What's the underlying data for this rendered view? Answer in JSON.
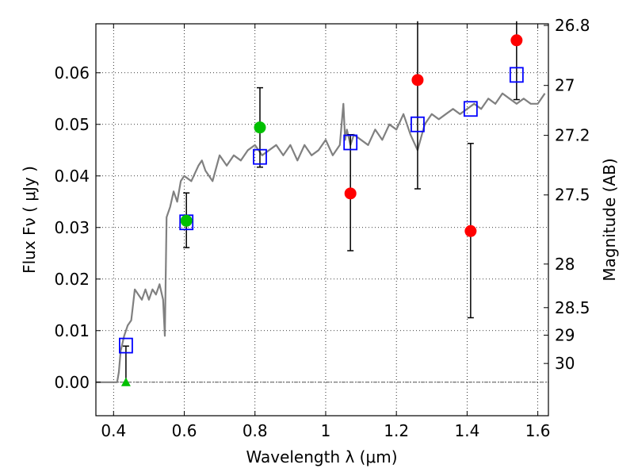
{
  "chart_data": {
    "type": "scatter",
    "xlabel": "Wavelength  λ (μm)",
    "ylabel": "Flux  Fν  ( μJy )",
    "y2label": "Magnitude (AB)",
    "xlim": [
      0.35,
      1.63
    ],
    "ylim": [
      -0.0065,
      0.0695
    ],
    "grid": true,
    "x_ticks": [
      0.4,
      0.6,
      0.8,
      1.0,
      1.2,
      1.4,
      1.6
    ],
    "x_tick_labels": [
      "0.4",
      "0.6",
      "0.8",
      "1",
      "1.2",
      "1.4",
      "1.6"
    ],
    "y_ticks": [
      0.0,
      0.01,
      0.02,
      0.03,
      0.04,
      0.05,
      0.06
    ],
    "y_tick_labels": [
      "0.00",
      "0.01",
      "0.02",
      "0.03",
      "0.04",
      "0.05",
      "0.06"
    ],
    "mag_ticks": [
      26.8,
      27,
      27.2,
      27.5,
      28,
      28.5,
      29,
      30
    ],
    "mag_tick_labels": [
      "26.8",
      "27",
      "27.2",
      "27.5",
      "28",
      "28.5",
      "29",
      "30"
    ],
    "colors": {
      "model": "#808080",
      "model_flux": "#0000ff",
      "green": "#00c000",
      "red": "#ff0000",
      "errorbar": "#000000",
      "zero_line": "#555555"
    },
    "model_spectrum": {
      "x": [
        0.35,
        0.38,
        0.4,
        0.41,
        0.415,
        0.42,
        0.43,
        0.44,
        0.45,
        0.46,
        0.47,
        0.48,
        0.49,
        0.5,
        0.51,
        0.52,
        0.53,
        0.54,
        0.545,
        0.55,
        0.56,
        0.57,
        0.58,
        0.59,
        0.6,
        0.62,
        0.64,
        0.65,
        0.66,
        0.68,
        0.7,
        0.72,
        0.74,
        0.76,
        0.78,
        0.8,
        0.82,
        0.84,
        0.86,
        0.88,
        0.9,
        0.92,
        0.94,
        0.96,
        0.98,
        1.0,
        1.02,
        1.04,
        1.05,
        1.055,
        1.06,
        1.07,
        1.08,
        1.1,
        1.12,
        1.14,
        1.16,
        1.18,
        1.2,
        1.22,
        1.24,
        1.26,
        1.28,
        1.3,
        1.32,
        1.34,
        1.36,
        1.38,
        1.4,
        1.42,
        1.44,
        1.46,
        1.48,
        1.5,
        1.52,
        1.54,
        1.56,
        1.58,
        1.6,
        1.62
      ],
      "y": [
        0.0,
        0.0,
        0.0,
        0.0,
        0.002,
        0.006,
        0.009,
        0.011,
        0.012,
        0.018,
        0.017,
        0.016,
        0.018,
        0.016,
        0.018,
        0.017,
        0.019,
        0.016,
        0.009,
        0.032,
        0.034,
        0.037,
        0.035,
        0.039,
        0.04,
        0.039,
        0.042,
        0.043,
        0.041,
        0.039,
        0.044,
        0.042,
        0.044,
        0.043,
        0.045,
        0.046,
        0.044,
        0.045,
        0.046,
        0.044,
        0.046,
        0.043,
        0.046,
        0.044,
        0.045,
        0.047,
        0.044,
        0.046,
        0.054,
        0.047,
        0.049,
        0.046,
        0.048,
        0.047,
        0.046,
        0.049,
        0.047,
        0.05,
        0.049,
        0.052,
        0.048,
        0.045,
        0.05,
        0.052,
        0.051,
        0.052,
        0.053,
        0.052,
        0.053,
        0.054,
        0.053,
        0.055,
        0.054,
        0.056,
        0.055,
        0.054,
        0.055,
        0.054,
        0.054,
        0.056
      ]
    },
    "model_band_flux": [
      {
        "x": 0.435,
        "y": 0.0071
      },
      {
        "x": 0.606,
        "y": 0.031
      },
      {
        "x": 0.814,
        "y": 0.0437
      },
      {
        "x": 1.07,
        "y": 0.0465
      },
      {
        "x": 1.26,
        "y": 0.05
      },
      {
        "x": 1.41,
        "y": 0.053
      },
      {
        "x": 1.54,
        "y": 0.0596
      }
    ],
    "observations": [
      {
        "x": 0.435,
        "y": 0.0,
        "err_low": 0.0,
        "err_high": 0.007,
        "color": "green",
        "marker": "triangle"
      },
      {
        "x": 0.606,
        "y": 0.0313,
        "err_low": 0.0052,
        "err_high": 0.0054,
        "color": "green",
        "marker": "circle"
      },
      {
        "x": 0.814,
        "y": 0.0494,
        "err_low": 0.0077,
        "err_high": 0.0077,
        "color": "green",
        "marker": "circle"
      },
      {
        "x": 1.07,
        "y": 0.0366,
        "err_low": 0.0111,
        "err_high": 0.0114,
        "color": "red",
        "marker": "circle"
      },
      {
        "x": 1.26,
        "y": 0.0586,
        "err_low": 0.0211,
        "err_high": 0.0114,
        "color": "red",
        "marker": "circle"
      },
      {
        "x": 1.41,
        "y": 0.0293,
        "err_low": 0.0168,
        "err_high": 0.017,
        "color": "red",
        "marker": "circle"
      },
      {
        "x": 1.54,
        "y": 0.0663,
        "err_low": 0.0115,
        "err_high": 0.0037,
        "color": "red",
        "marker": "circle"
      }
    ]
  }
}
